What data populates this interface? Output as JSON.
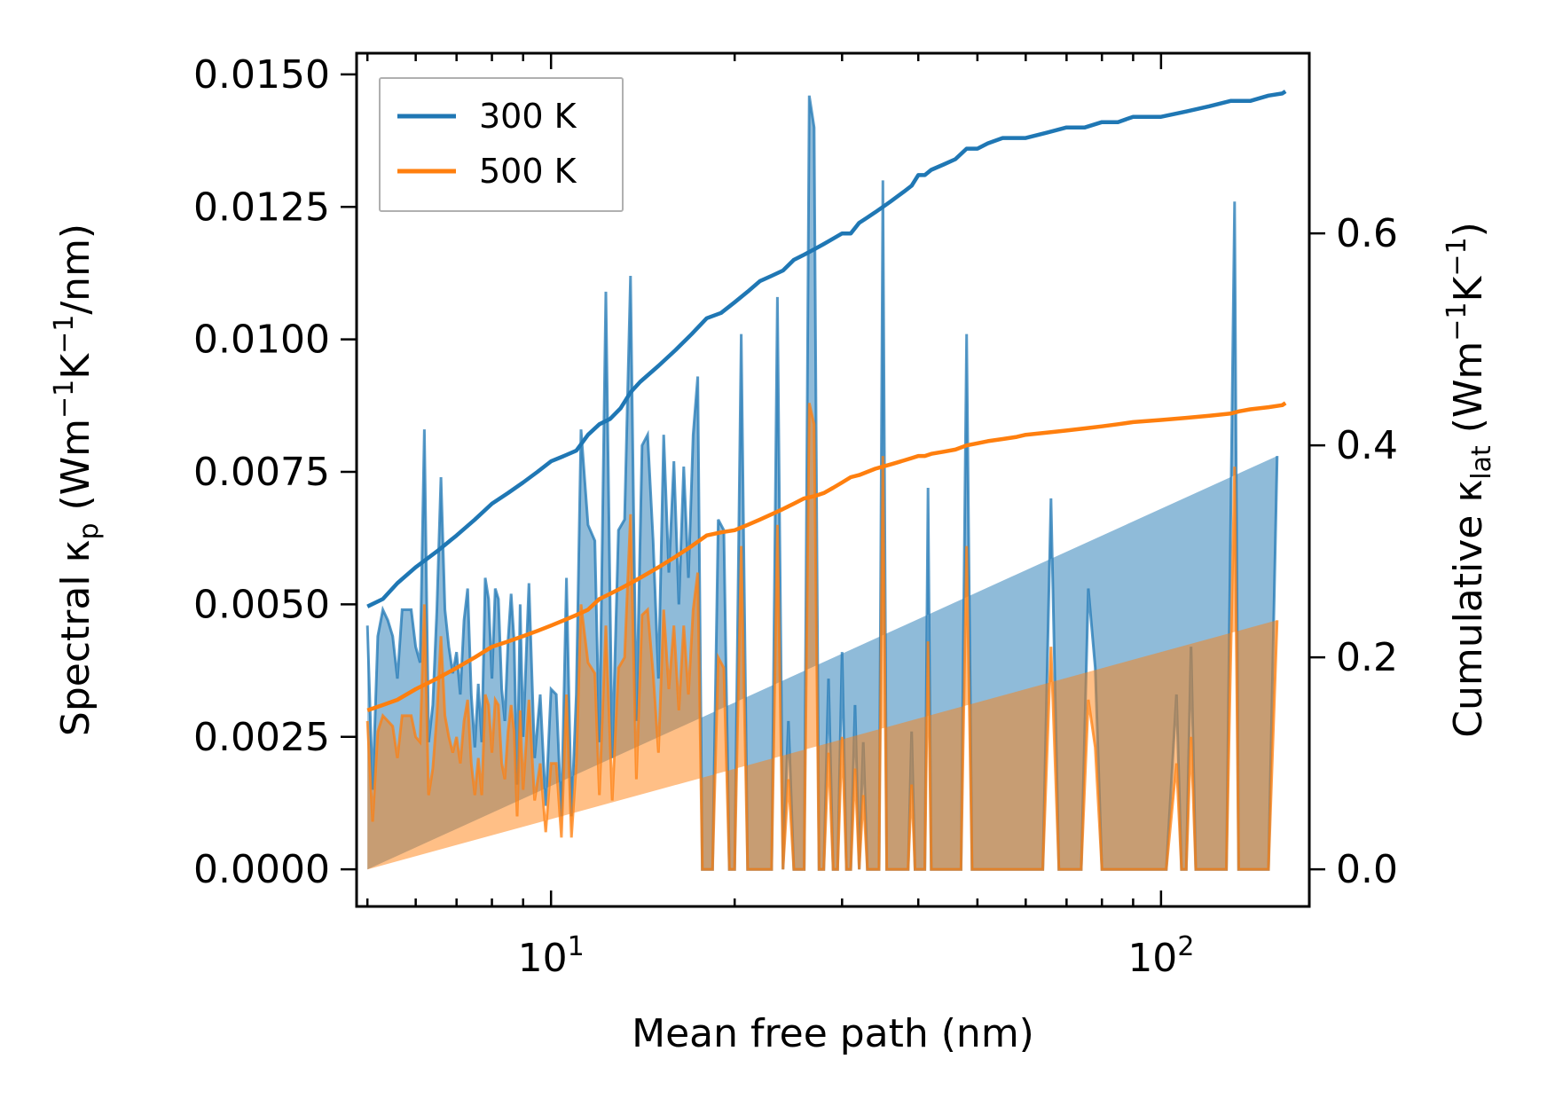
{
  "chart_data": {
    "type": "area",
    "xscale": "log",
    "xlim": [
      4.8,
      175
    ],
    "xlabel": "Mean free path (nm)",
    "xticks": [
      {
        "value": 10,
        "base": "10",
        "exp": "1"
      },
      {
        "value": 100,
        "base": "10",
        "exp": "2"
      }
    ],
    "y_left": {
      "label_parts": [
        "Spectral κ",
        "p",
        " (Wm",
        "−1",
        "K",
        "−1",
        "/nm)"
      ],
      "ylim": [
        -0.0007,
        0.0154
      ],
      "ticks": [
        {
          "value": 0.0,
          "label": "0.0000"
        },
        {
          "value": 0.0025,
          "label": "0.0025"
        },
        {
          "value": 0.005,
          "label": "0.0050"
        },
        {
          "value": 0.0075,
          "label": "0.0075"
        },
        {
          "value": 0.01,
          "label": "0.0100"
        },
        {
          "value": 0.0125,
          "label": "0.0125"
        },
        {
          "value": 0.015,
          "label": "0.0150"
        }
      ]
    },
    "y_right": {
      "label_parts": [
        "Cumulative κ",
        "lat",
        " (Wm",
        "−1",
        "K",
        "−1",
        ")"
      ],
      "ylim": [
        -0.035,
        0.77
      ],
      "ticks": [
        {
          "value": 0.0,
          "label": "0.0"
        },
        {
          "value": 0.2,
          "label": "0.2"
        },
        {
          "value": 0.4,
          "label": "0.4"
        },
        {
          "value": 0.6,
          "label": "0.6"
        }
      ]
    },
    "legend": {
      "position": "upper-left",
      "entries": [
        "300 K",
        "500 K"
      ]
    },
    "colors": {
      "300 K": "#1f77b4",
      "500 K": "#ff7f0e"
    },
    "spectral": {
      "x": [
        5.0,
        5.1,
        5.2,
        5.3,
        5.4,
        5.5,
        5.6,
        5.7,
        5.8,
        5.9,
        6.0,
        6.1,
        6.2,
        6.3,
        6.4,
        6.5,
        6.6,
        6.7,
        6.8,
        6.9,
        7.0,
        7.1,
        7.2,
        7.3,
        7.4,
        7.5,
        7.6,
        7.7,
        7.8,
        7.9,
        8.0,
        8.1,
        8.2,
        8.3,
        8.4,
        8.5,
        8.6,
        8.7,
        8.8,
        8.9,
        9.0,
        9.2,
        9.4,
        9.6,
        9.8,
        10.0,
        10.2,
        10.4,
        10.6,
        10.8,
        11.0,
        11.2,
        11.5,
        11.8,
        12.0,
        12.3,
        12.6,
        12.9,
        13.2,
        13.5,
        13.8,
        14.1,
        14.4,
        14.7,
        15.0,
        15.3,
        15.6,
        15.9,
        16.2,
        16.5,
        16.8,
        17.1,
        17.4,
        17.7,
        18.0,
        18.4,
        18.8,
        19.2,
        19.6,
        20.0,
        20.5,
        21.0,
        21.5,
        22.0,
        22.5,
        23.0,
        23.5,
        24.0,
        24.5,
        25.0,
        25.5,
        26.0,
        26.5,
        27.0,
        27.5,
        28.0,
        28.5,
        29.0,
        29.5,
        30.0,
        30.5,
        31.0,
        31.5,
        32.0,
        32.5,
        33.0,
        33.5,
        34.0,
        34.5,
        35.0,
        35.5,
        36.0,
        36.5,
        37.0,
        37.5,
        38.0,
        38.5,
        39.0,
        39.5,
        40.0,
        40.5,
        41.0,
        41.5,
        42.0,
        42.5,
        43.0,
        44.0,
        45.0,
        46.0,
        47.0,
        48.0,
        49.0,
        50.0,
        51.0,
        52.0,
        53.0,
        54.0,
        55.0,
        56.0,
        57.0,
        58.0,
        59.0,
        60.0,
        62.0,
        64.0,
        66.0,
        68.0,
        70.0,
        72.0,
        74.0,
        76.0,
        78.0,
        80.0,
        82.0,
        84.0,
        86.0,
        88.0,
        90.0,
        94.0,
        98.0,
        102.0,
        106.0,
        108.0,
        110.0,
        112.0,
        114.0,
        116.0,
        118.0,
        120.0,
        124.0,
        128.0,
        132.0,
        134.0,
        136.0,
        138.0,
        140.0,
        145.0,
        150.0,
        155.0,
        158.0,
        160.0
      ],
      "300 K": [
        0.0046,
        0.0015,
        0.0044,
        0.0049,
        0.0047,
        0.0044,
        0.0036,
        0.0049,
        0.0049,
        0.0049,
        0.0042,
        0.0039,
        0.0083,
        0.0024,
        0.0031,
        0.0049,
        0.0074,
        0.0049,
        0.0042,
        0.0037,
        0.0041,
        0.0033,
        0.0047,
        0.0053,
        0.0033,
        0.0023,
        0.0035,
        0.0024,
        0.0055,
        0.0051,
        0.0036,
        0.0053,
        0.0051,
        0.0034,
        0.0028,
        0.0043,
        0.0052,
        0.0043,
        0.0016,
        0.005,
        0.0025,
        0.0054,
        0.0021,
        0.0033,
        0.0012,
        0.0034,
        0.0033,
        0.001,
        0.0055,
        0.001,
        0.0033,
        0.0083,
        0.0065,
        0.0062,
        0.0024,
        0.0109,
        0.0021,
        0.0064,
        0.0066,
        0.0112,
        0.0028,
        0.008,
        0.0082,
        0.0062,
        0.0036,
        0.0082,
        0.0056,
        0.0077,
        0.005,
        0.0076,
        0.0055,
        0.0082,
        0.0093,
        0.0,
        0.0,
        0.0,
        0.0066,
        0.0064,
        0.0,
        0.0,
        0.0101,
        0.0,
        0.0,
        0.0,
        0.0,
        0.0,
        0.0108,
        0.0,
        0.0028,
        0.0,
        0.0,
        0.0,
        0.0146,
        0.014,
        0.0,
        0.0,
        0.0036,
        0.0,
        0.0,
        0.0041,
        0.0,
        0.0,
        0.0031,
        0.0,
        0.0024,
        0.0,
        0.0,
        0.0,
        0.0,
        0.013,
        0.0,
        0.0,
        0.0,
        0.0,
        0.0,
        0.0,
        0.0,
        0.0026,
        0.0,
        0.0,
        0.0,
        0.0,
        0.0072,
        0.0,
        0.0,
        0.0,
        0.0,
        0.0,
        0.0,
        0.0,
        0.0101,
        0.0,
        0.0,
        0.0,
        0.0,
        0.0,
        0.0,
        0.0,
        0.0,
        0.0,
        0.0,
        0.0,
        0.0,
        0.0,
        0.0,
        0.007,
        0.0,
        0.0,
        0.0,
        0.0,
        0.0053,
        0.0038,
        0.0,
        0.0,
        0.0,
        0.0,
        0.0,
        0.0,
        0.0,
        0.0,
        0.0,
        0.0033,
        0.0,
        0.0,
        0.0042,
        0.0,
        0.0,
        0.0,
        0.0,
        0.0,
        0.0,
        0.0126,
        0.0,
        0.0,
        0.0,
        0.0,
        0.0,
        0.0,
        0.0078
      ],
      "500 K": [
        0.0028,
        0.0009,
        0.0026,
        0.0029,
        0.0028,
        0.0027,
        0.0021,
        0.0029,
        0.0029,
        0.0029,
        0.0025,
        0.0024,
        0.005,
        0.0014,
        0.0019,
        0.0029,
        0.0044,
        0.0029,
        0.0025,
        0.0022,
        0.0025,
        0.002,
        0.0028,
        0.0032,
        0.002,
        0.0014,
        0.0021,
        0.0014,
        0.0033,
        0.0031,
        0.0022,
        0.0032,
        0.0031,
        0.002,
        0.0017,
        0.0026,
        0.0031,
        0.0026,
        0.001,
        0.003,
        0.0015,
        0.0032,
        0.0013,
        0.002,
        0.0007,
        0.002,
        0.002,
        0.0006,
        0.0033,
        0.0006,
        0.002,
        0.005,
        0.0039,
        0.0037,
        0.0014,
        0.0046,
        0.0013,
        0.0038,
        0.004,
        0.0067,
        0.0017,
        0.0048,
        0.0049,
        0.0037,
        0.0022,
        0.0049,
        0.0034,
        0.0046,
        0.003,
        0.0046,
        0.0033,
        0.0049,
        0.0056,
        0.0,
        0.0,
        0.0,
        0.004,
        0.0038,
        0.0,
        0.0,
        0.0061,
        0.0,
        0.0,
        0.0,
        0.0,
        0.0,
        0.0065,
        0.0,
        0.0017,
        0.0,
        0.0,
        0.0,
        0.0088,
        0.0084,
        0.0,
        0.0,
        0.0022,
        0.0,
        0.0,
        0.0025,
        0.0,
        0.0,
        0.0019,
        0.0,
        0.0014,
        0.0,
        0.0,
        0.0,
        0.0,
        0.0078,
        0.0,
        0.0,
        0.0,
        0.0,
        0.0,
        0.0,
        0.0,
        0.0016,
        0.0,
        0.0,
        0.0,
        0.0,
        0.0043,
        0.0,
        0.0,
        0.0,
        0.0,
        0.0,
        0.0,
        0.0,
        0.0061,
        0.0,
        0.0,
        0.0,
        0.0,
        0.0,
        0.0,
        0.0,
        0.0,
        0.0,
        0.0,
        0.0,
        0.0,
        0.0,
        0.0,
        0.0042,
        0.0,
        0.0,
        0.0,
        0.0,
        0.0032,
        0.0023,
        0.0,
        0.0,
        0.0,
        0.0,
        0.0,
        0.0,
        0.0,
        0.0,
        0.0,
        0.002,
        0.0,
        0.0,
        0.0025,
        0.0,
        0.0,
        0.0,
        0.0,
        0.0,
        0.0,
        0.0076,
        0.0,
        0.0,
        0.0,
        0.0,
        0.0,
        0.0,
        0.0047
      ]
    },
    "cumulative": {
      "x": [
        5.0,
        5.3,
        5.6,
        6.0,
        6.5,
        7.0,
        7.5,
        8.0,
        8.5,
        9.0,
        9.5,
        10.0,
        10.5,
        11.0,
        11.5,
        12.0,
        12.5,
        13.0,
        13.5,
        14.0,
        15.0,
        16.0,
        17.0,
        18.0,
        19.0,
        20.0,
        21.0,
        22.0,
        23.0,
        24.0,
        25.0,
        26.0,
        27.0,
        28.0,
        29.0,
        30.0,
        31.0,
        32.0,
        33.0,
        34.0,
        35.0,
        36.0,
        37.0,
        38.0,
        39.0,
        40.0,
        41.0,
        42.0,
        44.0,
        46.0,
        48.0,
        50.0,
        52.0,
        55.0,
        58.0,
        60.0,
        65.0,
        70.0,
        75.0,
        80.0,
        85.0,
        90.0,
        100.0,
        110.0,
        120.0,
        130.0,
        134.0,
        140.0,
        150.0,
        158.0,
        160.0
      ],
      "300 K": [
        0.248,
        0.255,
        0.27,
        0.285,
        0.3,
        0.315,
        0.33,
        0.345,
        0.355,
        0.365,
        0.375,
        0.385,
        0.39,
        0.395,
        0.41,
        0.42,
        0.425,
        0.435,
        0.45,
        0.46,
        0.475,
        0.49,
        0.505,
        0.52,
        0.525,
        0.535,
        0.545,
        0.555,
        0.56,
        0.565,
        0.575,
        0.58,
        0.585,
        0.59,
        0.595,
        0.6,
        0.6,
        0.61,
        0.615,
        0.62,
        0.625,
        0.63,
        0.635,
        0.64,
        0.645,
        0.655,
        0.655,
        0.66,
        0.665,
        0.67,
        0.68,
        0.68,
        0.685,
        0.69,
        0.69,
        0.69,
        0.695,
        0.7,
        0.7,
        0.705,
        0.705,
        0.71,
        0.71,
        0.715,
        0.72,
        0.725,
        0.725,
        0.725,
        0.73,
        0.732,
        0.734
      ],
      "500 K": [
        0.15,
        0.155,
        0.16,
        0.17,
        0.18,
        0.19,
        0.2,
        0.21,
        0.215,
        0.22,
        0.225,
        0.23,
        0.235,
        0.24,
        0.245,
        0.255,
        0.26,
        0.265,
        0.27,
        0.275,
        0.285,
        0.295,
        0.305,
        0.315,
        0.318,
        0.32,
        0.325,
        0.33,
        0.335,
        0.34,
        0.345,
        0.35,
        0.352,
        0.355,
        0.36,
        0.365,
        0.37,
        0.372,
        0.375,
        0.378,
        0.38,
        0.382,
        0.384,
        0.386,
        0.388,
        0.39,
        0.39,
        0.392,
        0.394,
        0.396,
        0.4,
        0.402,
        0.404,
        0.406,
        0.408,
        0.41,
        0.412,
        0.414,
        0.416,
        0.418,
        0.42,
        0.422,
        0.424,
        0.426,
        0.428,
        0.43,
        0.432,
        0.434,
        0.436,
        0.438,
        0.44
      ]
    }
  }
}
